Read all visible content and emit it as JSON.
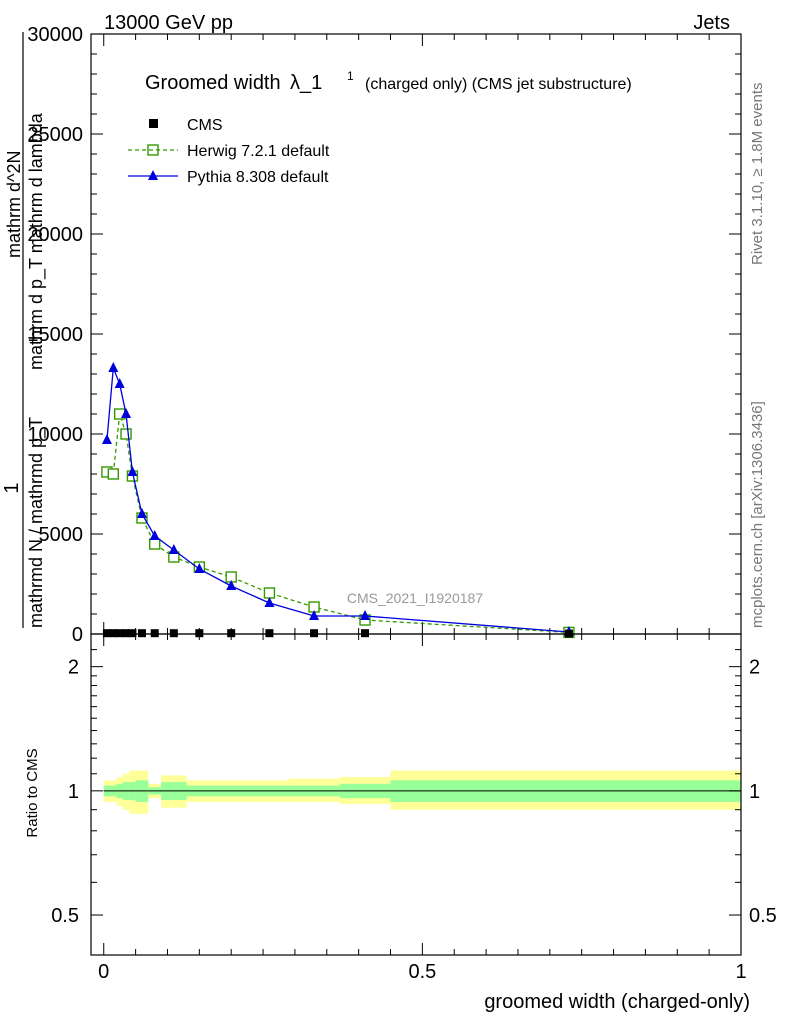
{
  "header": {
    "left": "13000 GeV pp",
    "right": "Jets"
  },
  "side_labels": {
    "rivet": "Rivet 3.1.10, ≥ 1.8M events",
    "mcplots": "mcplots.cern.ch [arXiv:1306.3436]"
  },
  "watermark": "CMS_2021_I1920187",
  "colors": {
    "cms": "#000000",
    "herwig": "#339900",
    "pythia": "#0000dd",
    "band_inner": "#99ff99",
    "band_outer": "#ffff99"
  },
  "chart_data": [
    {
      "type": "line",
      "panel": "main",
      "title_main": "Groomed width",
      "title_symbol": "λ_1",
      "title_sup": "1",
      "title_rest": "(charged only) (CMS jet substructure)",
      "xlabel": "groomed width (charged-only)",
      "ylabel": {
        "numerator": "1",
        "denominator": "mathrmd N / mathrmd p_T",
        "fraction_top": "mathrm d^2N",
        "fraction_bottom": "mathrm d p_T mathrm d lambda"
      },
      "xlim": [
        -0.02,
        1.0
      ],
      "ylim": [
        0,
        30000
      ],
      "yticks": [
        0,
        5000,
        10000,
        15000,
        20000,
        25000,
        30000
      ],
      "ytick_labels": [
        "0",
        "5000",
        "10000",
        "15000",
        "20000",
        "25000",
        "30000"
      ],
      "legend_position": "top-left",
      "series": [
        {
          "name": "CMS",
          "marker": "square",
          "x": [
            0.005,
            0.015,
            0.025,
            0.035,
            0.045,
            0.06,
            0.08,
            0.11,
            0.15,
            0.2,
            0.26,
            0.33,
            0.41,
            0.73
          ],
          "y": [
            40,
            40,
            40,
            40,
            40,
            40,
            40,
            40,
            40,
            40,
            40,
            40,
            40,
            20
          ]
        },
        {
          "name": "Herwig 7.2.1 default",
          "marker": "open-square",
          "linestyle": "dashed",
          "x": [
            0.005,
            0.015,
            0.025,
            0.035,
            0.045,
            0.06,
            0.08,
            0.11,
            0.15,
            0.2,
            0.26,
            0.33,
            0.41,
            0.73
          ],
          "y": [
            8100,
            8000,
            11000,
            10000,
            7900,
            5800,
            4500,
            3850,
            3350,
            2850,
            2050,
            1350,
            700,
            80
          ]
        },
        {
          "name": "Pythia 8.308 default",
          "marker": "filled-triangle",
          "linestyle": "solid",
          "x": [
            0.005,
            0.015,
            0.025,
            0.035,
            0.045,
            0.06,
            0.08,
            0.11,
            0.15,
            0.2,
            0.26,
            0.33,
            0.41,
            0.73
          ],
          "y": [
            9700,
            13300,
            12500,
            11000,
            8100,
            6000,
            4900,
            4200,
            3250,
            2400,
            1550,
            900,
            900,
            100
          ]
        }
      ]
    },
    {
      "type": "area",
      "panel": "ratio",
      "ylabel": "Ratio to CMS",
      "xlim": [
        -0.02,
        1.0
      ],
      "ylim": [
        0.4,
        2.4
      ],
      "yscale": "log",
      "yticks": [
        0.5,
        1,
        2
      ],
      "ytick_labels": [
        "0.5",
        "1",
        "2"
      ],
      "xticks": [
        0,
        0.5,
        1
      ],
      "xtick_labels": [
        "0",
        "0.5",
        "1"
      ],
      "reference": 1,
      "bins": [
        0,
        0.01,
        0.02,
        0.03,
        0.04,
        0.05,
        0.07,
        0.09,
        0.13,
        0.17,
        0.23,
        0.29,
        0.37,
        0.45,
        1.0
      ],
      "inner_band": {
        "low": [
          0.97,
          0.97,
          0.96,
          0.95,
          0.95,
          0.94,
          0.98,
          0.95,
          0.97,
          0.97,
          0.97,
          0.97,
          0.96,
          0.94
        ],
        "high": [
          1.03,
          1.03,
          1.04,
          1.05,
          1.05,
          1.06,
          1.02,
          1.05,
          1.03,
          1.03,
          1.03,
          1.03,
          1.04,
          1.06
        ]
      },
      "outer_band": {
        "low": [
          0.94,
          0.94,
          0.92,
          0.9,
          0.88,
          0.88,
          0.96,
          0.91,
          0.94,
          0.94,
          0.94,
          0.94,
          0.93,
          0.9
        ],
        "high": [
          1.06,
          1.06,
          1.08,
          1.1,
          1.12,
          1.12,
          1.04,
          1.09,
          1.06,
          1.06,
          1.06,
          1.07,
          1.08,
          1.12
        ]
      }
    }
  ]
}
